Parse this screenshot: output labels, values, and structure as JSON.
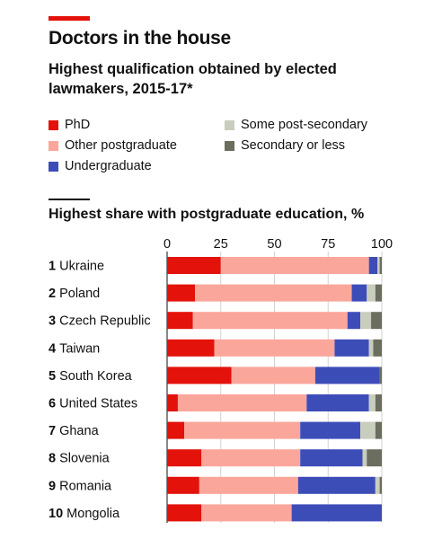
{
  "header": {
    "title": "Doctors in the house",
    "subtitle": "Highest qualification obtained by elected lawmakers, 2015-17*"
  },
  "chart_data": {
    "type": "bar",
    "orientation": "horizontal",
    "stacked": true,
    "title": "Highest share with postgraduate education, %",
    "xlim": [
      0,
      100
    ],
    "xticks": [
      "0",
      "25",
      "50",
      "75",
      "100"
    ],
    "xtick_values": [
      0,
      25,
      50,
      75,
      100
    ],
    "grid": true,
    "legend_position": "top",
    "categories": [
      "Ukraine",
      "Poland",
      "Czech Republic",
      "Taiwan",
      "South Korea",
      "United States",
      "Ghana",
      "Slovenia",
      "Romania",
      "Mongolia"
    ],
    "ranks": [
      "1",
      "2",
      "3",
      "4",
      "5",
      "6",
      "7",
      "8",
      "9",
      "10"
    ],
    "series": [
      {
        "name": "PhD",
        "color": "#e3120b",
        "values": [
          25,
          13,
          12,
          22,
          30,
          5,
          8,
          16,
          15,
          16
        ]
      },
      {
        "name": "Other postgraduate",
        "color": "#fba69b",
        "values": [
          69,
          73,
          72,
          56,
          39,
          60,
          54,
          46,
          46,
          42
        ]
      },
      {
        "name": "Undergraduate",
        "color": "#3d4db8",
        "values": [
          4,
          7,
          6,
          16,
          30,
          29,
          28,
          29,
          36,
          42
        ]
      },
      {
        "name": "Some post-secondary",
        "color": "#c8cdbd",
        "values": [
          1,
          4,
          5,
          2,
          0,
          3,
          7,
          2,
          2,
          0
        ]
      },
      {
        "name": "Secondary or less",
        "color": "#6b6d5e",
        "values": [
          1,
          3,
          5,
          4,
          1,
          3,
          3,
          7,
          1,
          0
        ]
      }
    ]
  },
  "legend": [
    {
      "label": "PhD",
      "color": "#e3120b"
    },
    {
      "label": "Other postgraduate",
      "color": "#fba69b"
    },
    {
      "label": "Undergraduate",
      "color": "#3d4db8"
    },
    {
      "label": "Some post-secondary",
      "color": "#c8cdbd"
    },
    {
      "label": "Secondary or less",
      "color": "#6b6d5e"
    }
  ]
}
